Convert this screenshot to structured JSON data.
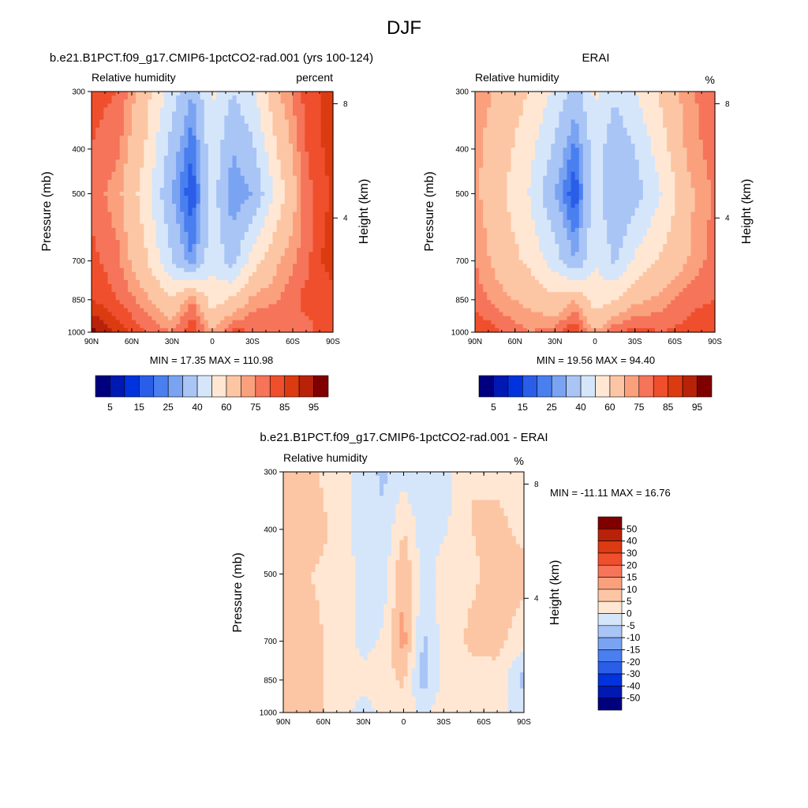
{
  "figure_title": "DJF",
  "palette_abs": [
    "#00007f",
    "#0019b3",
    "#0033dd",
    "#2a5ee8",
    "#4a7ff0",
    "#7aa3f2",
    "#a9c5f5",
    "#d6e6fa",
    "#ffe7d3",
    "#fcc6a4",
    "#fba07d",
    "#f5745a",
    "#ef4f2c",
    "#dc3a10",
    "#b82209",
    "#800000"
  ],
  "palette_diff": [
    "#00007f",
    "#0019b3",
    "#0033dd",
    "#2a5ee8",
    "#4a7ff0",
    "#7aa3f2",
    "#a9c5f5",
    "#d6e6fa",
    "#ffe7d3",
    "#fcc6a4",
    "#fba07d",
    "#f5745a",
    "#ef4f2c",
    "#dc3a10",
    "#b82209",
    "#800000"
  ],
  "colorbar_abs": {
    "tick_labels": [
      "5",
      "15",
      "25",
      "40",
      "60",
      "75",
      "85",
      "95"
    ]
  },
  "colorbar_diff": {
    "tick_labels": [
      "50",
      "40",
      "30",
      "20",
      "15",
      "10",
      "5",
      "0",
      "-5",
      "-10",
      "-15",
      "-20",
      "-30",
      "-40",
      "-50"
    ]
  },
  "chart_data": [
    {
      "type": "heatmap",
      "title": "b.e21.B1PCT.f09_g17.CMIP6-1pctCO2-rad.001 (yrs 100-124)",
      "left_string": "Relative humidity",
      "right_string": "percent",
      "ylabel": "Pressure (mb)",
      "ylabel_right": "Height (km)",
      "x_ticks": [
        "90N",
        "60N",
        "30N",
        "0",
        "30S",
        "60S",
        "90S"
      ],
      "y_ticks": [
        "300",
        "400",
        "500",
        "700",
        "850",
        "1000"
      ],
      "y_right_ticks": [
        "8",
        "4"
      ],
      "stats": "MIN =  17.35  MAX = 110.98",
      "x_range": [
        90,
        -90
      ],
      "y_range": [
        1000,
        300
      ],
      "x_values": [
        90,
        70,
        50,
        30,
        15,
        0,
        -15,
        -30,
        -50,
        -70,
        -90
      ],
      "y_values": [
        1000,
        850,
        700,
        500,
        400,
        300
      ],
      "values": [
        [
          97,
          88,
          80,
          75,
          85,
          70,
          82,
          80,
          80,
          78,
          85
        ],
        [
          85,
          80,
          72,
          62,
          75,
          55,
          62,
          72,
          75,
          82,
          80
        ],
        [
          82,
          76,
          62,
          40,
          25,
          48,
          35,
          55,
          70,
          78,
          90
        ],
        [
          78,
          72,
          55,
          30,
          15,
          45,
          25,
          30,
          55,
          78,
          86
        ],
        [
          80,
          76,
          60,
          35,
          20,
          48,
          30,
          38,
          62,
          80,
          88
        ],
        [
          82,
          80,
          64,
          45,
          30,
          52,
          40,
          48,
          70,
          82,
          88
        ]
      ]
    },
    {
      "type": "heatmap",
      "title": "ERAI",
      "left_string": "Relative humidity",
      "right_string": "%",
      "ylabel": "Pressure (mb)",
      "ylabel_right": "Height (km)",
      "x_ticks": [
        "90N",
        "60N",
        "30N",
        "0",
        "30S",
        "60S",
        "90S"
      ],
      "y_ticks": [
        "300",
        "400",
        "500",
        "700",
        "850",
        "1000"
      ],
      "y_right_ticks": [
        "8",
        "4"
      ],
      "stats": "MIN =  19.56  MAX =  94.40",
      "x_range": [
        90,
        -90
      ],
      "y_range": [
        1000,
        300
      ],
      "x_values": [
        90,
        70,
        50,
        30,
        15,
        0,
        -15,
        -30,
        -50,
        -70,
        -90
      ],
      "y_values": [
        1000,
        850,
        700,
        500,
        400,
        300
      ],
      "values": [
        [
          85,
          80,
          75,
          78,
          85,
          70,
          80,
          82,
          80,
          82,
          85
        ],
        [
          78,
          72,
          68,
          62,
          70,
          55,
          60,
          68,
          72,
          78,
          80
        ],
        [
          75,
          66,
          58,
          45,
          30,
          50,
          38,
          52,
          62,
          70,
          78
        ],
        [
          72,
          62,
          50,
          30,
          15,
          45,
          30,
          35,
          50,
          68,
          76
        ],
        [
          72,
          64,
          54,
          38,
          22,
          46,
          32,
          40,
          56,
          72,
          78
        ],
        [
          74,
          68,
          60,
          48,
          35,
          52,
          42,
          50,
          62,
          74,
          78
        ]
      ]
    },
    {
      "type": "heatmap",
      "title": "b.e21.B1PCT.f09_g17.CMIP6-1pctCO2-rad.001 - ERAI",
      "left_string": "Relative humidity",
      "right_string": "%",
      "ylabel": "Pressure (mb)",
      "ylabel_right": "Height (km)",
      "x_ticks": [
        "90N",
        "60N",
        "30N",
        "0",
        "30S",
        "60S",
        "90S"
      ],
      "y_ticks": [
        "300",
        "400",
        "500",
        "700",
        "850",
        "1000"
      ],
      "y_right_ticks": [
        "8",
        "4"
      ],
      "stats": "MIN = -11.11  MAX =  16.76",
      "x_range": [
        90,
        -90
      ],
      "y_range": [
        1000,
        300
      ],
      "x_values": [
        90,
        70,
        50,
        30,
        15,
        0,
        -15,
        -30,
        -50,
        -70,
        -90
      ],
      "y_values": [
        1000,
        850,
        700,
        500,
        400,
        300
      ],
      "values": [
        [
          8,
          6,
          4,
          -3,
          2,
          3,
          -1,
          3,
          2,
          0,
          0
        ],
        [
          7,
          6,
          4,
          2,
          3,
          6,
          -8,
          2,
          3,
          4,
          -8
        ],
        [
          6,
          6,
          4,
          -2,
          1,
          12,
          -6,
          2,
          6,
          6,
          3
        ],
        [
          5,
          5,
          4,
          -2,
          -3,
          10,
          -3,
          3,
          4,
          7,
          6
        ],
        [
          6,
          7,
          4,
          -3,
          -4,
          5,
          -3,
          -1,
          5,
          6,
          4
        ],
        [
          5,
          6,
          3,
          -3,
          -6,
          -2,
          -5,
          -3,
          5,
          4,
          3
        ]
      ]
    }
  ]
}
